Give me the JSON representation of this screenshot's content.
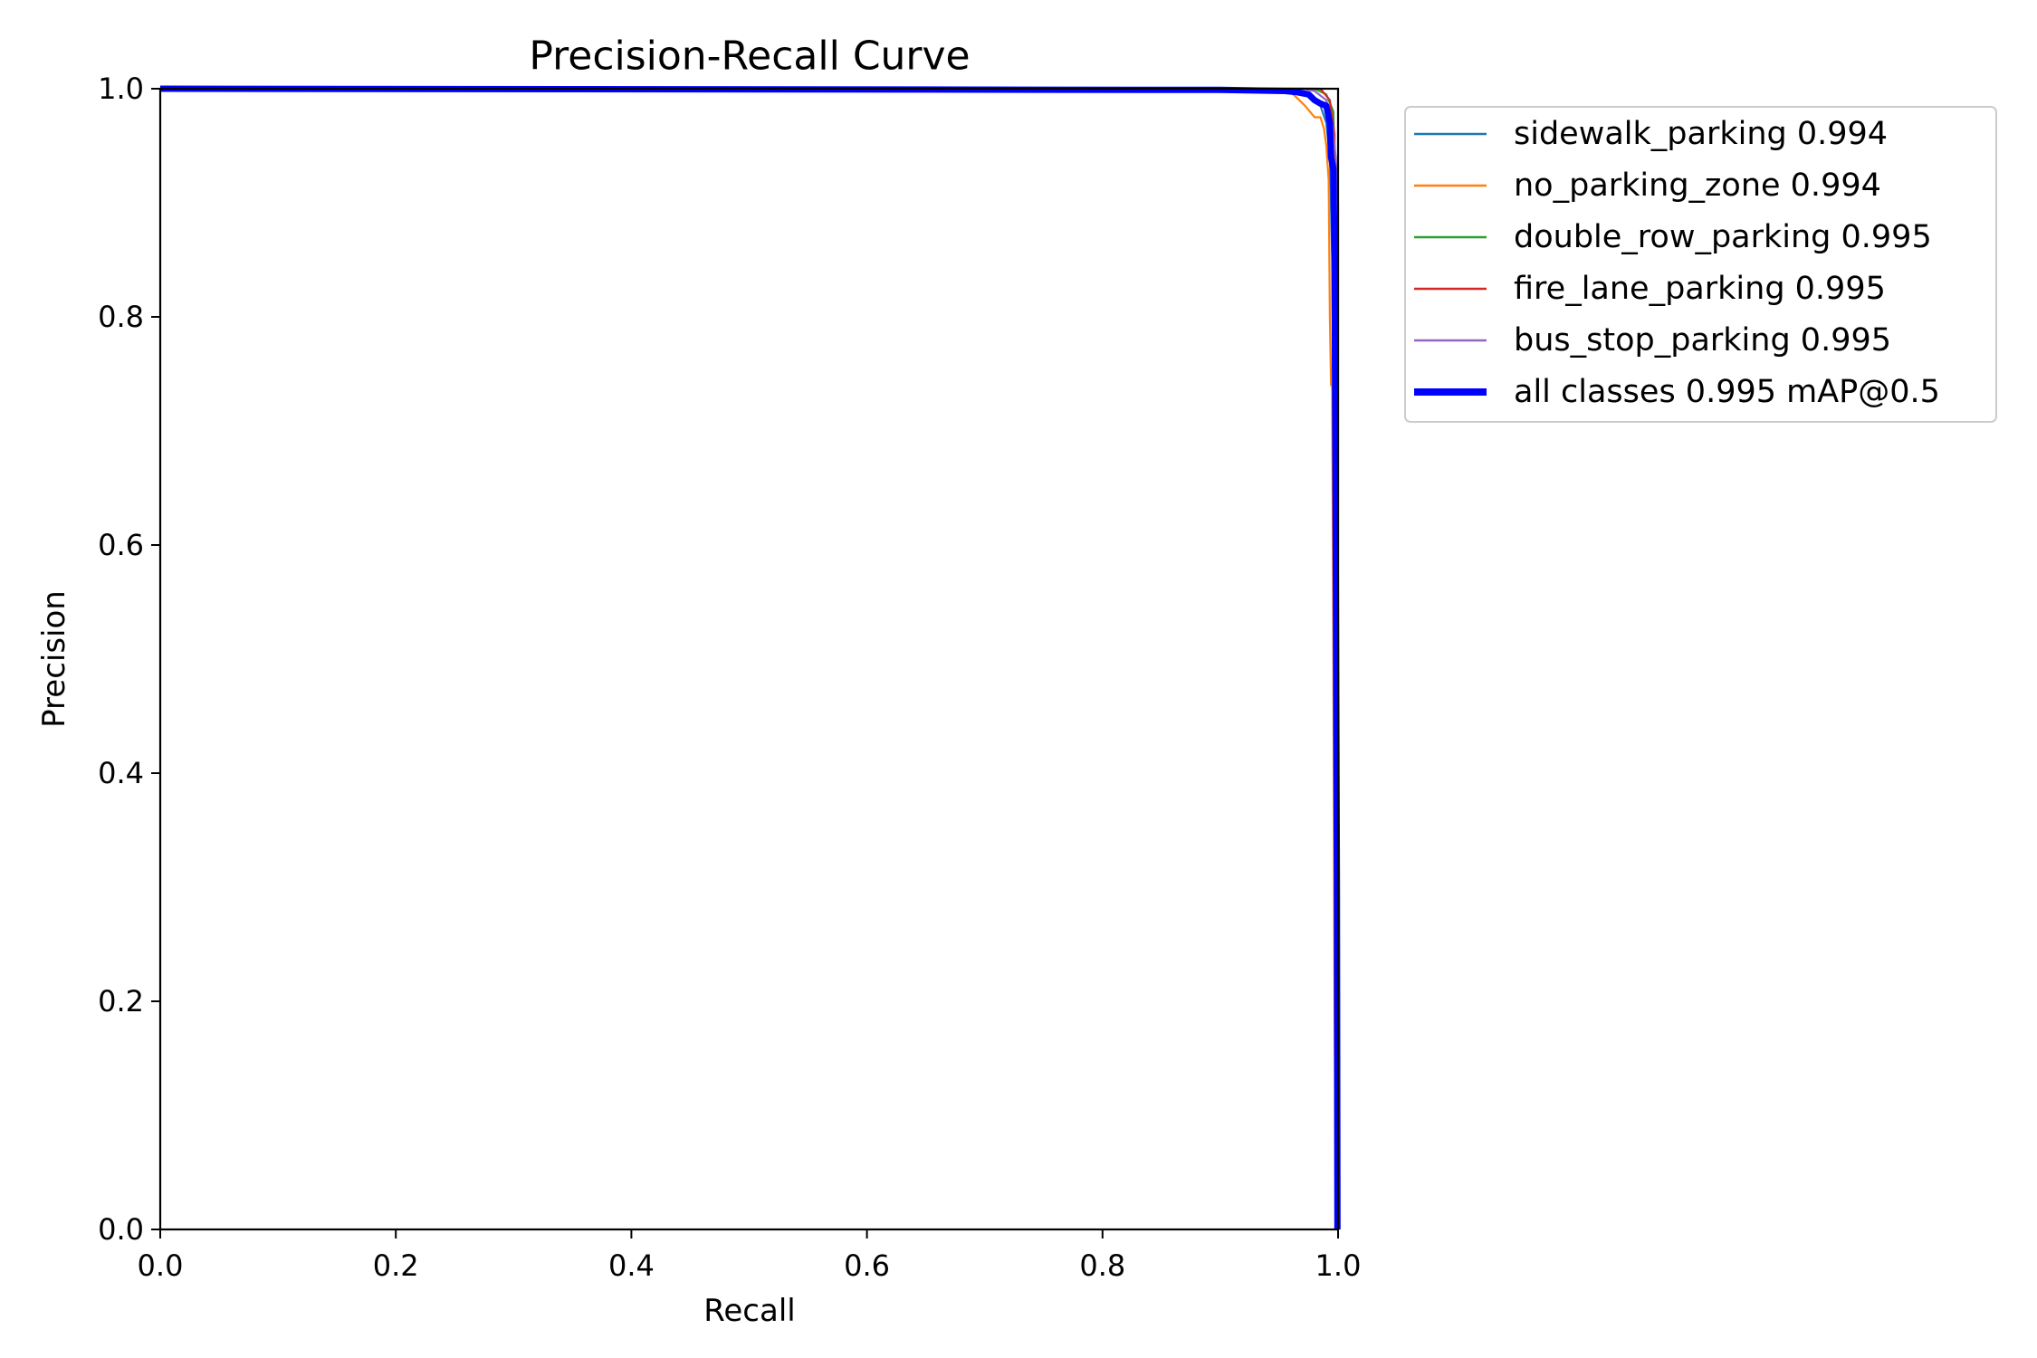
{
  "chart_data": {
    "type": "line",
    "title": "Precision-Recall Curve",
    "xlabel": "Recall",
    "ylabel": "Precision",
    "xlim": [
      0,
      1
    ],
    "ylim": [
      0,
      1
    ],
    "xticks": [
      "0.0",
      "0.2",
      "0.4",
      "0.6",
      "0.8",
      "1.0"
    ],
    "yticks": [
      "0.0",
      "0.2",
      "0.4",
      "0.6",
      "0.8",
      "1.0"
    ],
    "grid": false,
    "legend_position": "outside-right",
    "series": [
      {
        "name": "sidewalk_parking 0.994",
        "color": "#1f77b4",
        "width": "thin",
        "points": [
          [
            0,
            1.0
          ],
          [
            0.96,
            1.0
          ],
          [
            0.975,
            0.995
          ],
          [
            0.985,
            0.985
          ],
          [
            0.99,
            0.97
          ],
          [
            0.993,
            0.94
          ],
          [
            0.995,
            0.85
          ],
          [
            0.997,
            0.6
          ],
          [
            0.998,
            0.3
          ],
          [
            0.999,
            0.05
          ],
          [
            1.0,
            0.0
          ]
        ]
      },
      {
        "name": "no_parking_zone 0.994",
        "color": "#ff7f0e",
        "width": "thin",
        "points": [
          [
            0,
            1.0
          ],
          [
            0.95,
            1.0
          ],
          [
            0.962,
            0.995
          ],
          [
            0.967,
            0.99
          ],
          [
            0.972,
            0.985
          ],
          [
            0.976,
            0.98
          ],
          [
            0.98,
            0.975
          ],
          [
            0.985,
            0.975
          ],
          [
            0.988,
            0.965
          ],
          [
            0.99,
            0.95
          ],
          [
            0.992,
            0.92
          ],
          [
            0.993,
            0.8
          ],
          [
            0.994,
            0.74
          ],
          [
            0.995,
            0.74
          ],
          [
            0.996,
            0.5
          ],
          [
            0.997,
            0.2
          ],
          [
            0.998,
            0.0
          ]
        ]
      },
      {
        "name": "double_row_parking 0.995",
        "color": "#2ca02c",
        "width": "thin",
        "points": [
          [
            0,
            1.0
          ],
          [
            0.98,
            1.0
          ],
          [
            0.99,
            0.995
          ],
          [
            0.996,
            0.98
          ],
          [
            0.998,
            0.9
          ],
          [
            0.999,
            0.5
          ],
          [
            1.0,
            0.0
          ]
        ]
      },
      {
        "name": "fire_lane_parking 0.995",
        "color": "#d62728",
        "width": "thin",
        "points": [
          [
            0,
            1.0
          ],
          [
            0.985,
            1.0
          ],
          [
            0.993,
            0.99
          ],
          [
            0.997,
            0.96
          ],
          [
            0.999,
            0.7
          ],
          [
            1.0,
            0.0
          ]
        ]
      },
      {
        "name": "bus_stop_parking 0.995",
        "color": "#9467bd",
        "width": "thin",
        "points": [
          [
            0,
            1.0
          ],
          [
            0.97,
            1.0
          ],
          [
            0.98,
            0.998
          ],
          [
            0.99,
            0.99
          ],
          [
            0.995,
            0.97
          ],
          [
            0.998,
            0.94
          ],
          [
            1.0,
            0.9
          ],
          [
            1.0,
            0.0
          ]
        ]
      },
      {
        "name": "all classes 0.995 mAP@0.5",
        "color": "#0000ff",
        "width": "thick",
        "points": [
          [
            0,
            1.0
          ],
          [
            0.9,
            0.999
          ],
          [
            0.955,
            0.998
          ],
          [
            0.965,
            0.997
          ],
          [
            0.975,
            0.995
          ],
          [
            0.98,
            0.99
          ],
          [
            0.985,
            0.987
          ],
          [
            0.99,
            0.985
          ],
          [
            0.993,
            0.97
          ],
          [
            0.994,
            0.94
          ],
          [
            0.996,
            0.93
          ],
          [
            0.997,
            0.85
          ],
          [
            0.998,
            0.6
          ],
          [
            0.999,
            0.3
          ],
          [
            0.9995,
            0.0
          ]
        ]
      }
    ]
  }
}
